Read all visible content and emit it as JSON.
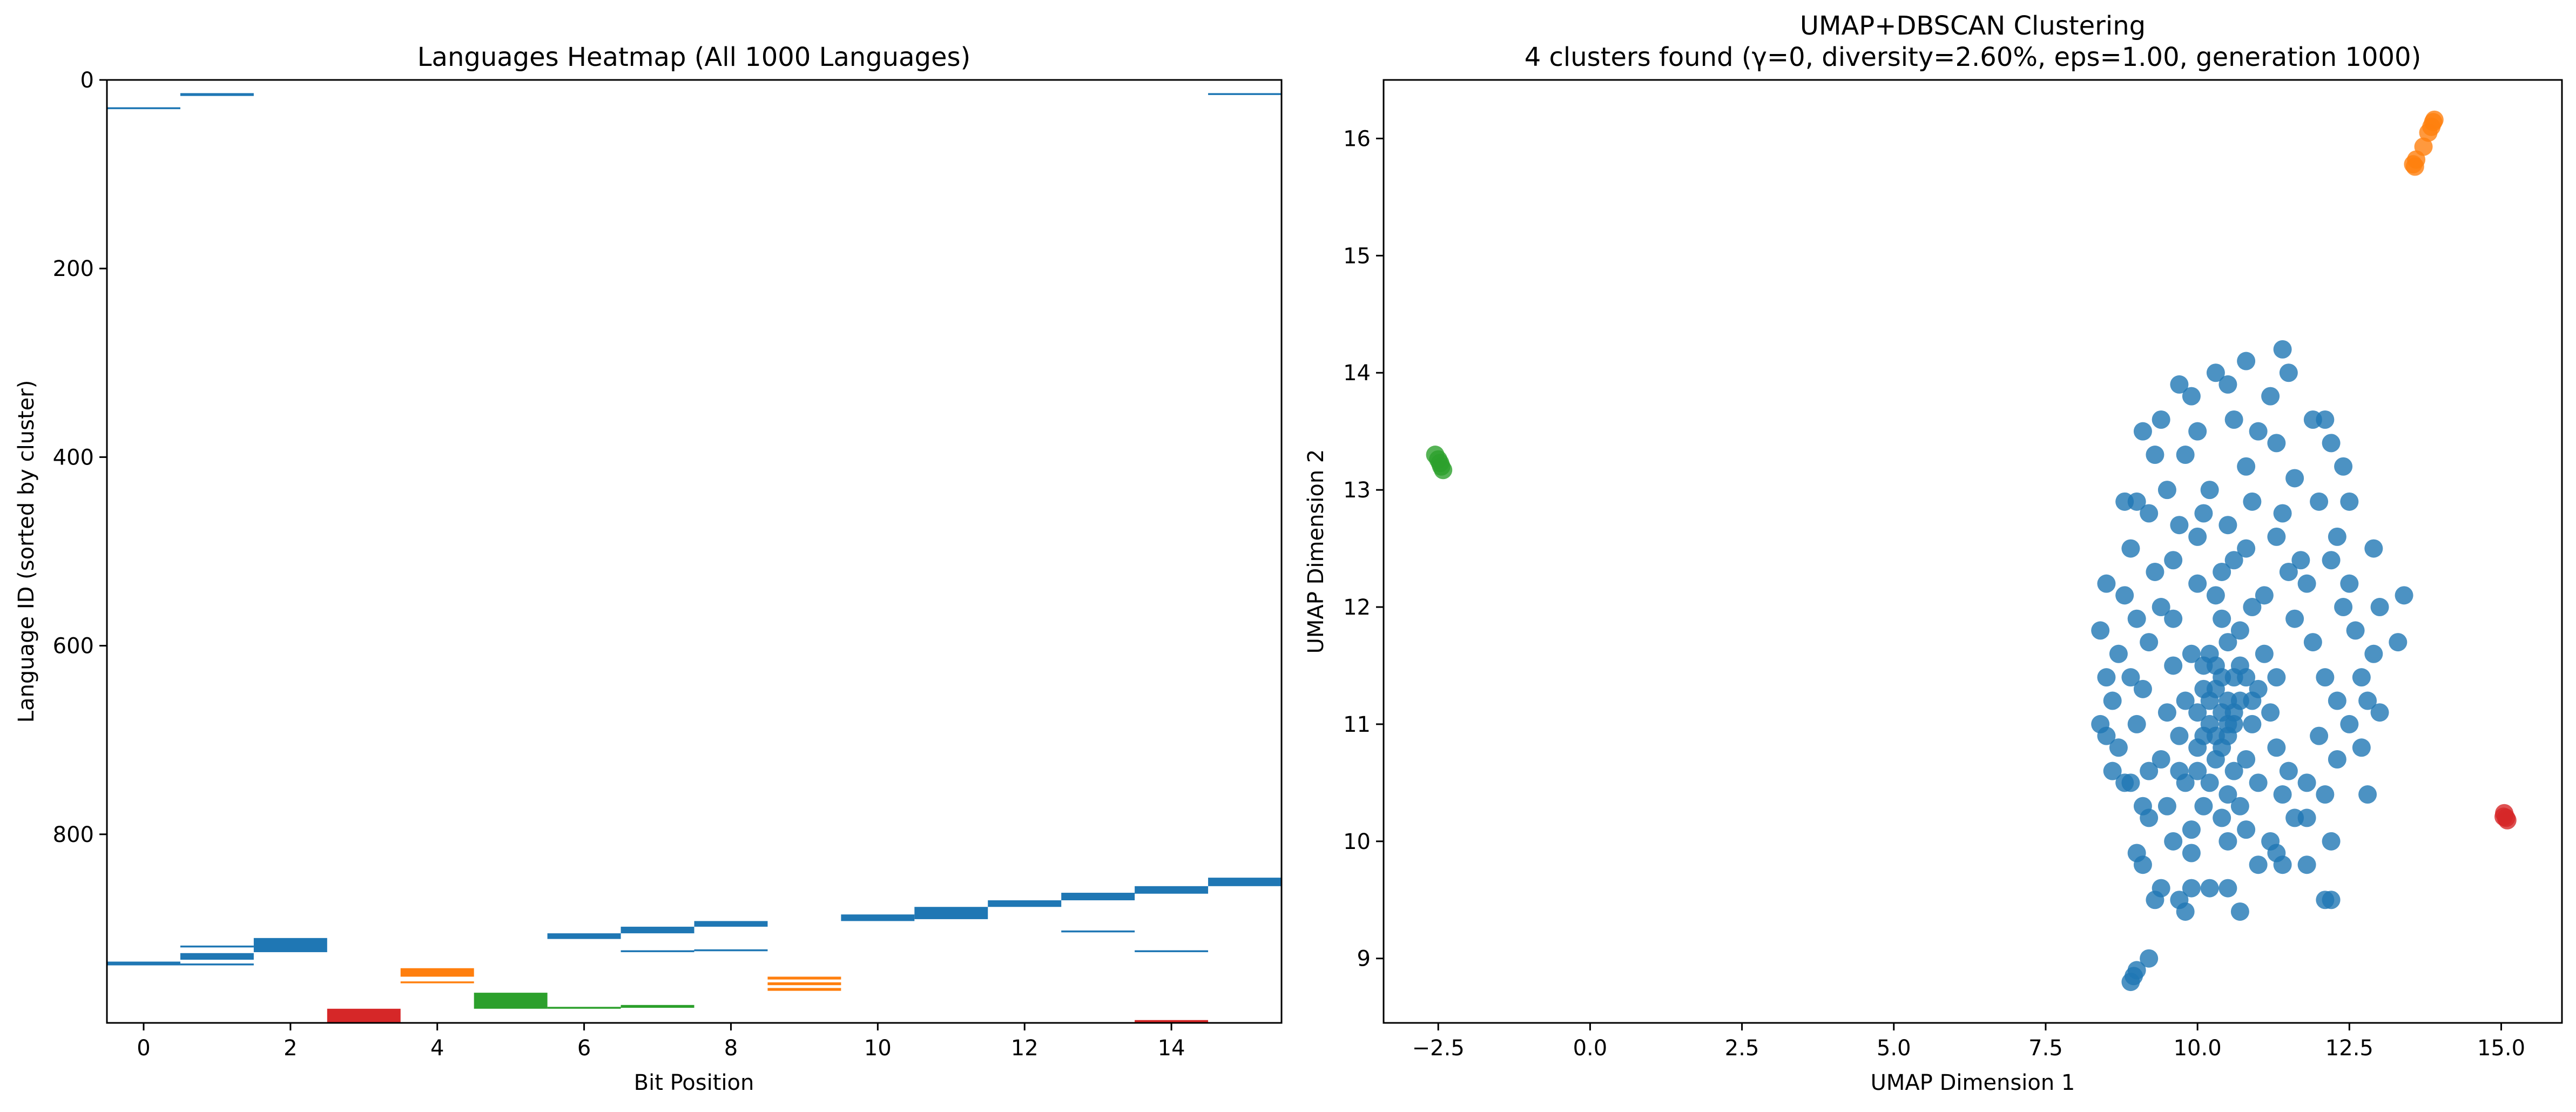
{
  "chart_data": [
    {
      "type": "heatmap",
      "title": "Languages Heatmap (All 1000 Languages)",
      "xlabel": "Bit Position",
      "ylabel": "Language ID (sorted by cluster)",
      "xlim": [
        -0.5,
        15.5
      ],
      "ylim": [
        1000,
        0
      ],
      "xticks": [
        0,
        2,
        4,
        6,
        8,
        10,
        12,
        14
      ],
      "yticks": [
        0,
        200,
        400,
        600,
        800
      ],
      "colors": {
        "blue": "#1f77b4",
        "orange": "#ff7f0e",
        "green": "#2ca02c",
        "red": "#d62728"
      },
      "marks": [
        {
          "bit": 0,
          "y0": 29,
          "y1": 31,
          "color": "blue"
        },
        {
          "bit": 0,
          "y0": 935,
          "y1": 939,
          "color": "blue"
        },
        {
          "bit": 1,
          "y0": 14,
          "y1": 17,
          "color": "blue"
        },
        {
          "bit": 1,
          "y0": 918,
          "y1": 920,
          "color": "blue"
        },
        {
          "bit": 1,
          "y0": 926,
          "y1": 933,
          "color": "blue"
        },
        {
          "bit": 1,
          "y0": 937,
          "y1": 939,
          "color": "blue"
        },
        {
          "bit": 2,
          "y0": 910,
          "y1": 925,
          "color": "blue"
        },
        {
          "bit": 3,
          "y0": 985,
          "y1": 1000,
          "color": "red"
        },
        {
          "bit": 4,
          "y0": 942,
          "y1": 951,
          "color": "orange"
        },
        {
          "bit": 4,
          "y0": 956,
          "y1": 958,
          "color": "orange"
        },
        {
          "bit": 5,
          "y0": 968,
          "y1": 985,
          "color": "green"
        },
        {
          "bit": 6,
          "y0": 905,
          "y1": 911,
          "color": "blue"
        },
        {
          "bit": 6,
          "y0": 983,
          "y1": 985,
          "color": "green"
        },
        {
          "bit": 7,
          "y0": 898,
          "y1": 905,
          "color": "blue"
        },
        {
          "bit": 7,
          "y0": 923,
          "y1": 925,
          "color": "blue"
        },
        {
          "bit": 7,
          "y0": 981,
          "y1": 984,
          "color": "green"
        },
        {
          "bit": 8,
          "y0": 892,
          "y1": 898,
          "color": "blue"
        },
        {
          "bit": 8,
          "y0": 922,
          "y1": 924,
          "color": "blue"
        },
        {
          "bit": 9,
          "y0": 951,
          "y1": 954,
          "color": "orange"
        },
        {
          "bit": 9,
          "y0": 957,
          "y1": 960,
          "color": "orange"
        },
        {
          "bit": 9,
          "y0": 963,
          "y1": 966,
          "color": "orange"
        },
        {
          "bit": 10,
          "y0": 885,
          "y1": 892,
          "color": "blue"
        },
        {
          "bit": 11,
          "y0": 877,
          "y1": 890,
          "color": "blue"
        },
        {
          "bit": 12,
          "y0": 870,
          "y1": 877,
          "color": "blue"
        },
        {
          "bit": 13,
          "y0": 862,
          "y1": 870,
          "color": "blue"
        },
        {
          "bit": 13,
          "y0": 902,
          "y1": 904,
          "color": "blue"
        },
        {
          "bit": 14,
          "y0": 855,
          "y1": 863,
          "color": "blue"
        },
        {
          "bit": 14,
          "y0": 923,
          "y1": 925,
          "color": "blue"
        },
        {
          "bit": 14,
          "y0": 997,
          "y1": 1000,
          "color": "red"
        },
        {
          "bit": 15,
          "y0": 14,
          "y1": 16,
          "color": "blue"
        },
        {
          "bit": 15,
          "y0": 846,
          "y1": 855,
          "color": "blue"
        }
      ]
    },
    {
      "type": "scatter",
      "title": "UMAP+DBSCAN Clustering",
      "subtitle": "4 clusters found (γ=0, diversity=2.60%, eps=1.00, generation 1000)",
      "xlabel": "UMAP Dimension 1",
      "ylabel": "UMAP Dimension 2",
      "xlim": [
        -3.4,
        16.0
      ],
      "ylim": [
        8.45,
        16.5
      ],
      "xticks": [
        -2.5,
        0.0,
        2.5,
        5.0,
        7.5,
        10.0,
        12.5,
        15.0
      ],
      "yticks": [
        9,
        10,
        11,
        12,
        13,
        14,
        15,
        16
      ],
      "series": [
        {
          "color": "#1f77b4",
          "points": [
            [
              10.3,
              11.3
            ],
            [
              10.4,
              11.1
            ],
            [
              10.6,
              11.4
            ],
            [
              10.2,
              11.0
            ],
            [
              10.5,
              10.9
            ],
            [
              10.3,
              11.5
            ],
            [
              10.7,
              11.2
            ],
            [
              10.1,
              11.3
            ],
            [
              10.4,
              10.8
            ],
            [
              10.6,
              11.0
            ],
            [
              10.2,
              11.6
            ],
            [
              10.8,
              11.4
            ],
            [
              10.0,
              11.1
            ],
            [
              10.5,
              11.7
            ],
            [
              10.3,
              10.7
            ],
            [
              10.9,
              11.0
            ],
            [
              10.1,
              10.9
            ],
            [
              10.6,
              10.6
            ],
            [
              10.4,
              11.9
            ],
            [
              10.7,
              11.8
            ],
            [
              9.8,
              11.2
            ],
            [
              11.0,
              11.3
            ],
            [
              10.2,
              10.5
            ],
            [
              10.8,
              10.7
            ],
            [
              9.9,
              11.6
            ],
            [
              11.1,
              11.6
            ],
            [
              10.5,
              10.4
            ],
            [
              10.0,
              10.6
            ],
            [
              11.2,
              11.1
            ],
            [
              9.7,
              10.9
            ],
            [
              10.3,
              12.1
            ],
            [
              10.9,
              12.0
            ],
            [
              9.6,
              11.5
            ],
            [
              11.3,
              11.4
            ],
            [
              10.1,
              10.3
            ],
            [
              10.7,
              10.3
            ],
            [
              9.8,
              10.5
            ],
            [
              11.0,
              10.5
            ],
            [
              10.4,
              12.3
            ],
            [
              9.5,
              11.1
            ],
            [
              10.2,
              11.2
            ],
            [
              10.6,
              11.1
            ],
            [
              10.4,
              11.4
            ],
            [
              10.5,
              11.2
            ],
            [
              10.3,
              10.9
            ],
            [
              10.7,
              11.5
            ],
            [
              10.1,
              11.5
            ],
            [
              10.5,
              11.0
            ],
            [
              10.9,
              11.2
            ],
            [
              10.0,
              10.8
            ],
            [
              11.4,
              12.8
            ],
            [
              10.0,
              12.6
            ],
            [
              10.8,
              12.5
            ],
            [
              9.6,
              12.4
            ],
            [
              11.5,
              12.3
            ],
            [
              9.4,
              12.0
            ],
            [
              11.8,
              12.2
            ],
            [
              9.2,
              11.7
            ],
            [
              11.9,
              11.7
            ],
            [
              9.1,
              11.3
            ],
            [
              12.1,
              11.4
            ],
            [
              9.0,
              11.0
            ],
            [
              12.0,
              10.9
            ],
            [
              9.2,
              10.6
            ],
            [
              11.8,
              10.5
            ],
            [
              9.5,
              10.3
            ],
            [
              11.6,
              10.2
            ],
            [
              9.9,
              10.1
            ],
            [
              11.2,
              10.0
            ],
            [
              10.5,
              10.0
            ],
            [
              10.8,
              13.2
            ],
            [
              10.2,
              13.0
            ],
            [
              11.0,
              13.5
            ],
            [
              9.8,
              13.3
            ],
            [
              11.6,
              13.1
            ],
            [
              9.5,
              13.0
            ],
            [
              12.0,
              12.9
            ],
            [
              9.2,
              12.8
            ],
            [
              12.3,
              12.6
            ],
            [
              8.9,
              12.5
            ],
            [
              12.5,
              12.2
            ],
            [
              8.8,
              12.1
            ],
            [
              12.6,
              11.8
            ],
            [
              8.7,
              11.6
            ],
            [
              12.7,
              11.4
            ],
            [
              8.6,
              11.2
            ],
            [
              12.5,
              11.0
            ],
            [
              8.7,
              10.8
            ],
            [
              12.3,
              10.7
            ],
            [
              8.9,
              10.5
            ],
            [
              12.1,
              10.4
            ],
            [
              9.2,
              10.2
            ],
            [
              11.8,
              10.2
            ],
            [
              9.6,
              10.0
            ],
            [
              11.4,
              9.8
            ],
            [
              9.0,
              12.9
            ],
            [
              8.5,
              12.2
            ],
            [
              8.4,
              11.8
            ],
            [
              8.5,
              11.4
            ],
            [
              8.4,
              11.0
            ],
            [
              8.6,
              10.6
            ],
            [
              12.9,
              12.5
            ],
            [
              13.0,
              12.0
            ],
            [
              12.9,
              11.6
            ],
            [
              12.8,
              11.2
            ],
            [
              12.7,
              10.8
            ],
            [
              9.3,
              13.3
            ],
            [
              12.2,
              13.4
            ],
            [
              9.1,
              13.5
            ],
            [
              12.5,
              12.9
            ],
            [
              11.2,
              13.8
            ],
            [
              10.5,
              13.9
            ],
            [
              9.9,
              13.8
            ],
            [
              11.4,
              14.2
            ],
            [
              10.8,
              14.1
            ],
            [
              10.3,
              14.0
            ],
            [
              9.7,
              13.9
            ],
            [
              11.5,
              14.0
            ],
            [
              11.9,
              13.6
            ],
            [
              12.1,
              13.6
            ],
            [
              9.4,
              13.6
            ],
            [
              10.0,
              13.5
            ],
            [
              10.6,
              13.6
            ],
            [
              11.3,
              13.4
            ],
            [
              12.4,
              13.2
            ],
            [
              8.8,
              12.9
            ],
            [
              13.4,
              12.1
            ],
            [
              13.3,
              11.7
            ],
            [
              13.0,
              11.1
            ],
            [
              8.5,
              10.9
            ],
            [
              8.8,
              10.5
            ],
            [
              12.8,
              10.4
            ],
            [
              12.2,
              10.0
            ],
            [
              11.8,
              9.8
            ],
            [
              9.9,
              9.9
            ],
            [
              10.2,
              9.6
            ],
            [
              10.5,
              9.6
            ],
            [
              10.7,
              9.4
            ],
            [
              11.3,
              9.9
            ],
            [
              11.0,
              9.8
            ],
            [
              12.1,
              9.5
            ],
            [
              12.2,
              9.5
            ],
            [
              9.3,
              9.5
            ],
            [
              9.0,
              9.9
            ],
            [
              9.1,
              9.8
            ],
            [
              9.4,
              9.6
            ],
            [
              9.7,
              9.5
            ],
            [
              9.9,
              9.6
            ],
            [
              9.8,
              9.4
            ],
            [
              9.0,
              8.9
            ],
            [
              9.2,
              9.0
            ],
            [
              8.95,
              8.85
            ],
            [
              8.9,
              8.8
            ],
            [
              10.5,
              12.7
            ],
            [
              10.9,
              12.9
            ],
            [
              10.1,
              12.8
            ],
            [
              9.7,
              12.7
            ],
            [
              11.3,
              12.6
            ],
            [
              11.7,
              12.4
            ],
            [
              9.3,
              12.3
            ],
            [
              12.2,
              12.4
            ],
            [
              12.4,
              12.0
            ],
            [
              9.0,
              11.9
            ],
            [
              8.9,
              11.4
            ],
            [
              12.3,
              11.2
            ],
            [
              9.1,
              10.3
            ],
            [
              11.5,
              10.6
            ],
            [
              10.4,
              10.2
            ],
            [
              9.6,
              11.9
            ],
            [
              11.6,
              11.9
            ],
            [
              10.0,
              12.2
            ],
            [
              11.1,
              12.1
            ],
            [
              10.6,
              12.4
            ],
            [
              9.4,
              10.7
            ],
            [
              11.3,
              10.8
            ],
            [
              9.7,
              10.6
            ],
            [
              11.4,
              10.4
            ],
            [
              10.8,
              10.1
            ]
          ]
        },
        {
          "color": "#ff7f0e",
          "points": [
            [
              13.55,
              15.78
            ],
            [
              13.6,
              15.82
            ],
            [
              13.58,
              15.76
            ],
            [
              13.72,
              15.93
            ],
            [
              13.8,
              16.05
            ],
            [
              13.85,
              16.1
            ],
            [
              13.88,
              16.14
            ],
            [
              13.9,
              16.16
            ]
          ]
        },
        {
          "color": "#2ca02c",
          "points": [
            [
              -2.55,
              13.3
            ],
            [
              -2.5,
              13.26
            ],
            [
              -2.47,
              13.23
            ],
            [
              -2.45,
              13.2
            ],
            [
              -2.42,
              13.17
            ]
          ]
        },
        {
          "color": "#d62728",
          "points": [
            [
              15.05,
              10.24
            ],
            [
              15.08,
              10.2
            ],
            [
              15.1,
              10.18
            ],
            [
              15.04,
              10.21
            ]
          ]
        }
      ]
    }
  ]
}
